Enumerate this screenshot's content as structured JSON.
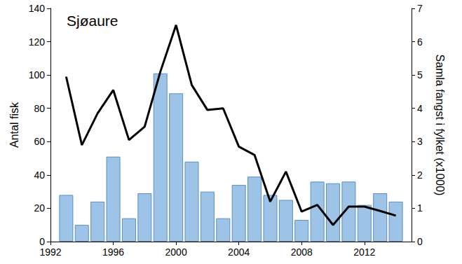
{
  "chart_data": {
    "type": "bar",
    "title": "Sjøaure",
    "ylabel": "Antal fisk",
    "y2label": "Samla fangst i fylket (x1000)",
    "x": [
      1993,
      1994,
      1995,
      1996,
      1997,
      1998,
      1999,
      2000,
      2001,
      2002,
      2003,
      2004,
      2005,
      2006,
      2007,
      2008,
      2009,
      2010,
      2011,
      2012,
      2013,
      2014
    ],
    "series": [
      {
        "type": "bar",
        "color": "#9dc3e6",
        "values": [
          28,
          10,
          24,
          51,
          14,
          29,
          101,
          89,
          48,
          30,
          14,
          34,
          39,
          28,
          25,
          13,
          36,
          35,
          36,
          22,
          29,
          24
        ]
      },
      {
        "type": "line",
        "color": "#000000",
        "axis": "y2",
        "values": [
          4.95,
          2.9,
          3.85,
          4.55,
          3.05,
          3.45,
          5.1,
          6.5,
          4.7,
          3.95,
          4.0,
          2.85,
          2.6,
          1.2,
          2.1,
          0.9,
          1.1,
          0.5,
          1.05,
          1.05,
          0.92,
          0.78
        ]
      }
    ],
    "xlim": [
      1992,
      2015
    ],
    "xticks": [
      1992,
      1996,
      2000,
      2004,
      2008,
      2012
    ],
    "ylim": [
      0,
      140
    ],
    "yticks": [
      0,
      20,
      40,
      60,
      80,
      100,
      120,
      140
    ],
    "y2lim": [
      0,
      7
    ],
    "y2ticks": [
      0,
      1,
      2,
      3,
      4,
      5,
      6,
      7
    ],
    "grid": false
  }
}
